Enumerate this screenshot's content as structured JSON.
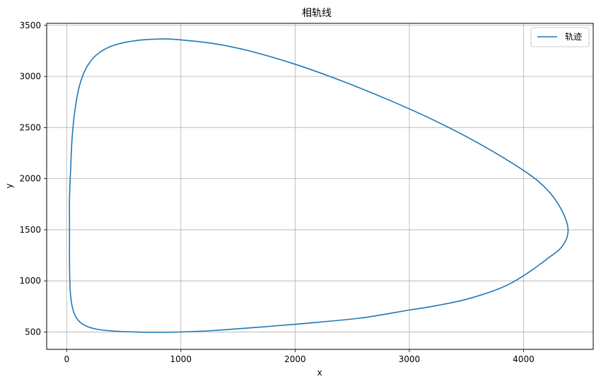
{
  "chart_data": {
    "type": "line",
    "title": "相轨线",
    "xlabel": "x",
    "ylabel": "y",
    "xlim": [
      -175,
      4610
    ],
    "ylim": [
      330,
      3520
    ],
    "xticks": [
      0,
      1000,
      2000,
      3000,
      4000
    ],
    "yticks": [
      500,
      1000,
      1500,
      2000,
      2500,
      3000,
      3500
    ],
    "grid": true,
    "legend": {
      "position": "top-right",
      "entries": [
        "轨迹"
      ]
    },
    "series": [
      {
        "name": "轨迹",
        "color": "#1f77b4",
        "closed": true,
        "points": [
          [
            25,
            1580
          ],
          [
            25,
            1800
          ],
          [
            35,
            2100
          ],
          [
            48,
            2400
          ],
          [
            70,
            2650
          ],
          [
            110,
            2900
          ],
          [
            170,
            3080
          ],
          [
            260,
            3210
          ],
          [
            400,
            3300
          ],
          [
            600,
            3350
          ],
          [
            850,
            3367
          ],
          [
            1000,
            3358
          ],
          [
            1300,
            3320
          ],
          [
            1600,
            3250
          ],
          [
            2000,
            3120
          ],
          [
            2400,
            2960
          ],
          [
            2800,
            2780
          ],
          [
            3200,
            2580
          ],
          [
            3600,
            2350
          ],
          [
            4000,
            2080
          ],
          [
            4200,
            1900
          ],
          [
            4330,
            1700
          ],
          [
            4390,
            1500
          ],
          [
            4340,
            1340
          ],
          [
            4200,
            1210
          ],
          [
            4000,
            1050
          ],
          [
            3800,
            930
          ],
          [
            3500,
            820
          ],
          [
            3200,
            750
          ],
          [
            3000,
            715
          ],
          [
            2600,
            640
          ],
          [
            2200,
            595
          ],
          [
            2000,
            575
          ],
          [
            1600,
            540
          ],
          [
            1300,
            515
          ],
          [
            1000,
            500
          ],
          [
            850,
            497
          ],
          [
            600,
            500
          ],
          [
            400,
            510
          ],
          [
            250,
            530
          ],
          [
            150,
            570
          ],
          [
            90,
            630
          ],
          [
            55,
            720
          ],
          [
            35,
            850
          ],
          [
            28,
            1000
          ],
          [
            25,
            1200
          ],
          [
            25,
            1400
          ]
        ]
      }
    ]
  }
}
